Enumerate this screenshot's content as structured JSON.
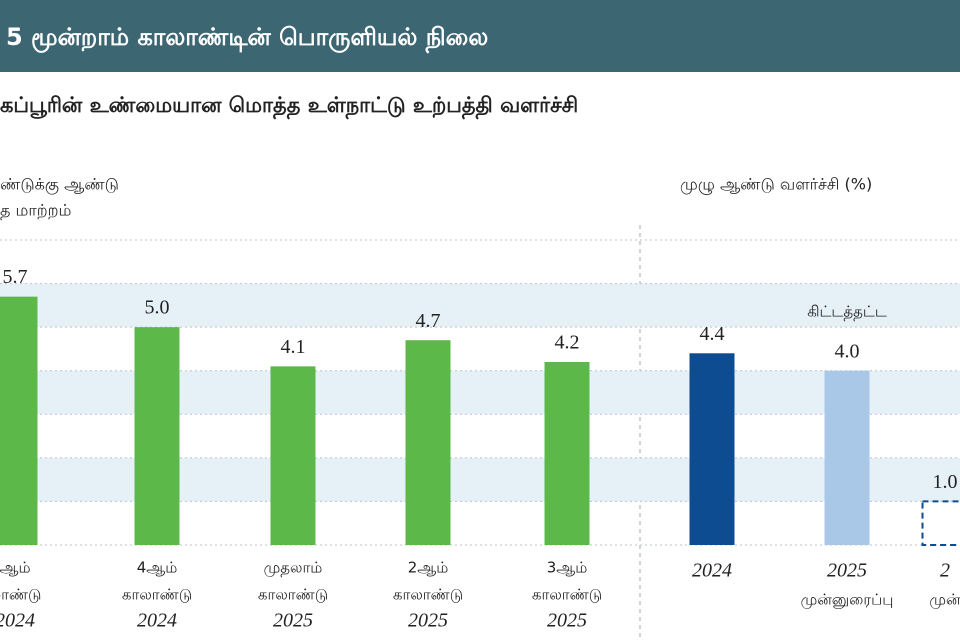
{
  "banner_title": "5 மூன்றாம் காலாண்டின் பொருளியல் நிலை",
  "chart_data": [
    {
      "type": "bar",
      "title": "கப்பூரின் உண்மையான மொத்த உள்நாட்டு உற்பத்தி வளர்ச்சி",
      "y_label": [
        "ண்டுக்கு ஆண்டு",
        "த மாற்றம்"
      ],
      "categories": [
        [
          "ஆம்",
          "லாண்டு",
          "2024"
        ],
        [
          "4ஆம்",
          "காலாண்டு",
          "2024"
        ],
        [
          "முதலாம்",
          "காலாண்டு",
          "2025"
        ],
        [
          "2ஆம்",
          "காலாண்டு",
          "2025"
        ],
        [
          "3ஆம்",
          "காலாண்டு",
          "2025"
        ]
      ],
      "values": [
        5.7,
        5.0,
        4.1,
        4.7,
        4.2
      ],
      "value_labels": [
        "5.7",
        "5.0",
        "4.1",
        "4.7",
        "4.2"
      ],
      "colors": [
        "#5cb848",
        "#5cb848",
        "#5cb848",
        "#5cb848",
        "#5cb848"
      ],
      "styles": [
        "solid",
        "solid",
        "solid",
        "solid",
        "solid"
      ],
      "ylim": [
        0,
        7
      ],
      "yticks": [
        0,
        1,
        2,
        3,
        4,
        5,
        6,
        7
      ],
      "grid": true
    },
    {
      "type": "bar",
      "y_label": [
        "முழு ஆண்டு வளர்ச்சி (%)"
      ],
      "categories": [
        [
          "2024"
        ],
        [
          "2025",
          "முன்னுரைப்பு"
        ],
        [
          "2",
          "முன்"
        ]
      ],
      "values": [
        4.4,
        4.0,
        1.0
      ],
      "value_labels": [
        "4.4",
        "4.0",
        "1.0"
      ],
      "colors": [
        "#0e4c92",
        "#a9c8e8",
        "#0e4c92"
      ],
      "styles": [
        "solid",
        "solid",
        "dashed"
      ],
      "annotation": "கிட்டத்தட்ட",
      "ylim": [
        0,
        7
      ],
      "yticks": [
        0,
        1,
        2,
        3,
        4,
        5,
        6,
        7
      ],
      "grid": true
    }
  ]
}
